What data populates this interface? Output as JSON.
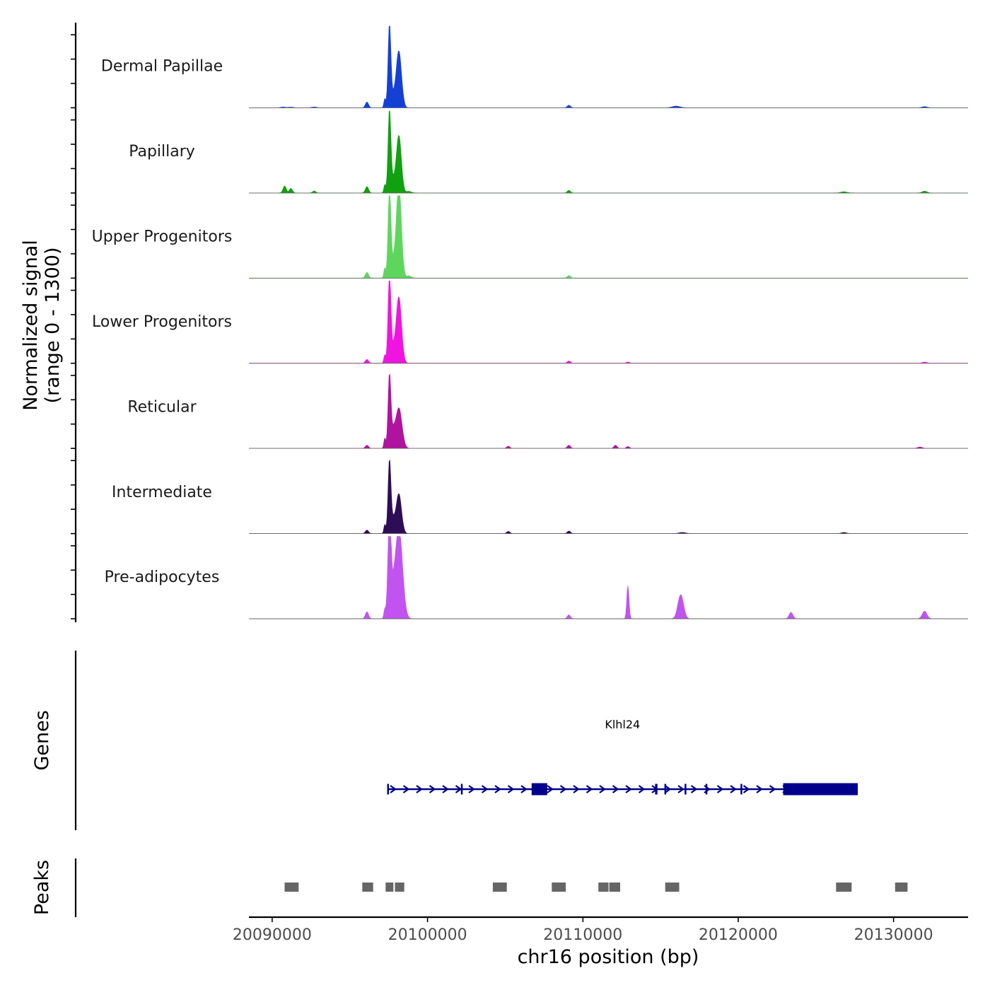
{
  "chart_data": {
    "type": "area",
    "chromosome": "chr16",
    "xlabel": "chr16 position (bp)",
    "xlim": [
      20088500,
      20134800
    ],
    "x_ticks": [
      20090000,
      20100000,
      20110000,
      20120000,
      20130000
    ],
    "x_tick_labels": [
      "20090000",
      "20100000",
      "20110000",
      "20120000",
      "20130000"
    ],
    "coverage": {
      "ylabel_line1": "Normalized signal",
      "ylabel_line2": "(range 0 - 1300)",
      "ylim": [
        0,
        1300
      ],
      "tracks": [
        {
          "name": "Dermal Papillae",
          "color": "#1440D6",
          "peaks": [
            [
              20090700,
              12,
              150
            ],
            [
              20091200,
              10,
              150
            ],
            [
              20092700,
              12,
              150
            ],
            [
              20096100,
              90,
              100
            ],
            [
              20097250,
              140,
              60
            ],
            [
              20097550,
              1300,
              90
            ],
            [
              20097780,
              160,
              120
            ],
            [
              20098150,
              900,
              170
            ],
            [
              20109100,
              40,
              100
            ],
            [
              20116000,
              25,
              250
            ],
            [
              20132000,
              18,
              150
            ]
          ]
        },
        {
          "name": "Papillary",
          "color": "#10A010",
          "peaks": [
            [
              20090800,
              110,
              100
            ],
            [
              20091200,
              70,
              100
            ],
            [
              20092700,
              30,
              100
            ],
            [
              20096100,
              100,
              100
            ],
            [
              20097250,
              130,
              60
            ],
            [
              20097550,
              1300,
              90
            ],
            [
              20097780,
              180,
              120
            ],
            [
              20098150,
              910,
              160
            ],
            [
              20098800,
              25,
              150
            ],
            [
              20109100,
              40,
              100
            ],
            [
              20126800,
              18,
              200
            ],
            [
              20132000,
              28,
              150
            ]
          ]
        },
        {
          "name": "Upper Progenitors",
          "color": "#5ED65E",
          "peaks": [
            [
              20096100,
              90,
              100
            ],
            [
              20097250,
              160,
              60
            ],
            [
              20097550,
              1400,
              90
            ],
            [
              20097780,
              220,
              120
            ],
            [
              20098150,
              1500,
              160
            ],
            [
              20098800,
              35,
              150
            ],
            [
              20109100,
              40,
              100
            ]
          ]
        },
        {
          "name": "Lower Progenitors",
          "color": "#F014E0",
          "peaks": [
            [
              20096100,
              60,
              100
            ],
            [
              20097250,
              130,
              60
            ],
            [
              20097550,
              1400,
              90
            ],
            [
              20097780,
              200,
              120
            ],
            [
              20098150,
              1050,
              170
            ],
            [
              20109100,
              35,
              100
            ],
            [
              20112900,
              20,
              100
            ],
            [
              20132000,
              18,
              150
            ]
          ]
        },
        {
          "name": "Reticular",
          "color": "#B0139E",
          "peaks": [
            [
              20096100,
              50,
              100
            ],
            [
              20097250,
              160,
              60
            ],
            [
              20097550,
              1150,
              90
            ],
            [
              20097780,
              220,
              120
            ],
            [
              20098150,
              640,
              200
            ],
            [
              20105200,
              35,
              100
            ],
            [
              20109100,
              50,
              100
            ],
            [
              20112100,
              50,
              100
            ],
            [
              20112900,
              30,
              100
            ],
            [
              20131700,
              22,
              150
            ]
          ]
        },
        {
          "name": "Intermediate",
          "color": "#2E0D57",
          "peaks": [
            [
              20096100,
              55,
              100
            ],
            [
              20097250,
              140,
              60
            ],
            [
              20097550,
              1150,
              90
            ],
            [
              20097780,
              200,
              120
            ],
            [
              20098150,
              630,
              170
            ],
            [
              20105200,
              35,
              100
            ],
            [
              20109100,
              40,
              100
            ],
            [
              20116400,
              18,
              200
            ],
            [
              20126800,
              18,
              150
            ]
          ]
        },
        {
          "name": "Pre-adipocytes",
          "color": "#C154F0",
          "peaks": [
            [
              20096100,
              110,
              100
            ],
            [
              20097250,
              150,
              60
            ],
            [
              20097550,
              1650,
              100
            ],
            [
              20097780,
              250,
              120
            ],
            [
              20098150,
              1450,
              230
            ],
            [
              20109100,
              60,
              100
            ],
            [
              20112900,
              520,
              70
            ],
            [
              20116300,
              380,
              180
            ],
            [
              20123400,
              100,
              120
            ],
            [
              20132000,
              120,
              150
            ]
          ]
        }
      ]
    },
    "genes": {
      "ylabel": "Genes",
      "gene_name": "Klhl24",
      "color": "#00008B",
      "strand": "+",
      "start": 20097400,
      "end": 20127700,
      "exons": [
        [
          20097400,
          20097500
        ],
        [
          20102150,
          20102200
        ],
        [
          20106700,
          20107700
        ],
        [
          20114650,
          20114800
        ],
        [
          20115250,
          20115350
        ],
        [
          20116550,
          20116650
        ],
        [
          20117900,
          20118000
        ],
        [
          20120150,
          20120250
        ],
        [
          20122900,
          20127700
        ]
      ]
    },
    "peaks": {
      "ylabel": "Peaks",
      "color": "#666666",
      "regions": [
        [
          20090800,
          20091700
        ],
        [
          20095800,
          20096500
        ],
        [
          20097300,
          20097800
        ],
        [
          20097900,
          20098500
        ],
        [
          20104200,
          20105100
        ],
        [
          20108000,
          20108900
        ],
        [
          20111000,
          20111650
        ],
        [
          20111700,
          20112400
        ],
        [
          20115300,
          20116200
        ],
        [
          20126300,
          20127300
        ],
        [
          20130100,
          20130900
        ]
      ]
    }
  }
}
